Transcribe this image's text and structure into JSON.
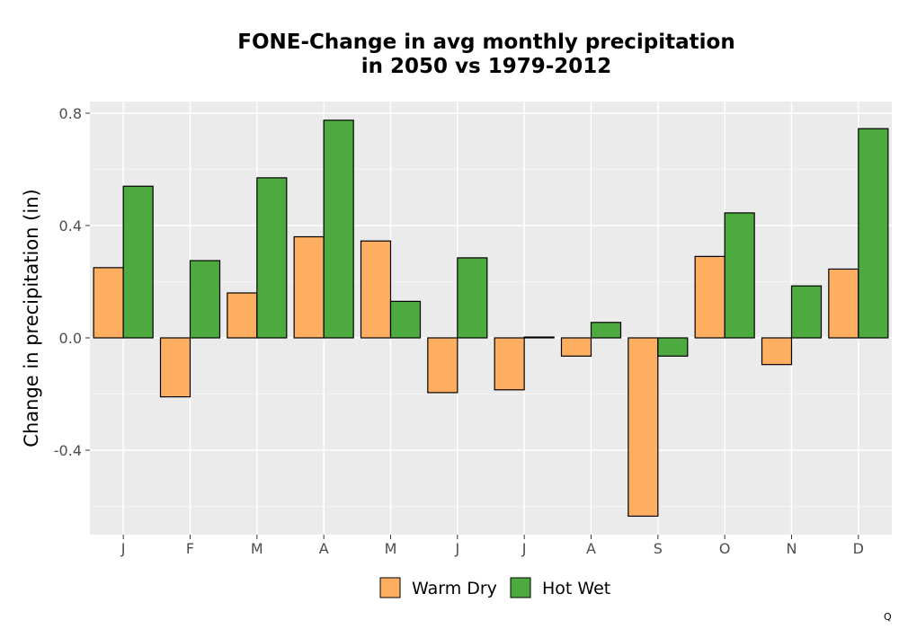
{
  "chart_data": {
    "type": "bar",
    "title_lines": [
      "FONE-Change in avg monthly precipitation",
      "in 2050 vs 1979-2012"
    ],
    "xlabel": "",
    "ylabel": "Change in precipitation (in)",
    "categories": [
      "J",
      "F",
      "M",
      "A",
      "M",
      "J",
      "J",
      "A",
      "S",
      "O",
      "N",
      "D"
    ],
    "series": [
      {
        "name": "Warm Dry",
        "color": "#fdae61",
        "values": [
          0.25,
          -0.21,
          0.16,
          0.36,
          0.345,
          -0.195,
          -0.185,
          -0.065,
          -0.635,
          0.29,
          -0.095,
          0.245
        ]
      },
      {
        "name": "Hot Wet",
        "color": "#4daa3e",
        "values": [
          0.54,
          0.275,
          0.57,
          0.775,
          0.13,
          0.285,
          0.003,
          0.055,
          -0.065,
          0.445,
          0.185,
          0.745
        ]
      }
    ],
    "yticks": [
      "0.8",
      "0.4",
      "0.0",
      "-0.4"
    ],
    "ytick_values": [
      0.8,
      0.4,
      0.0,
      -0.4
    ],
    "ylim": [
      -0.7,
      0.84
    ],
    "grid": true,
    "legend_position": "bottom",
    "panel_color": "#ebebeb"
  },
  "corner_label": "Q"
}
